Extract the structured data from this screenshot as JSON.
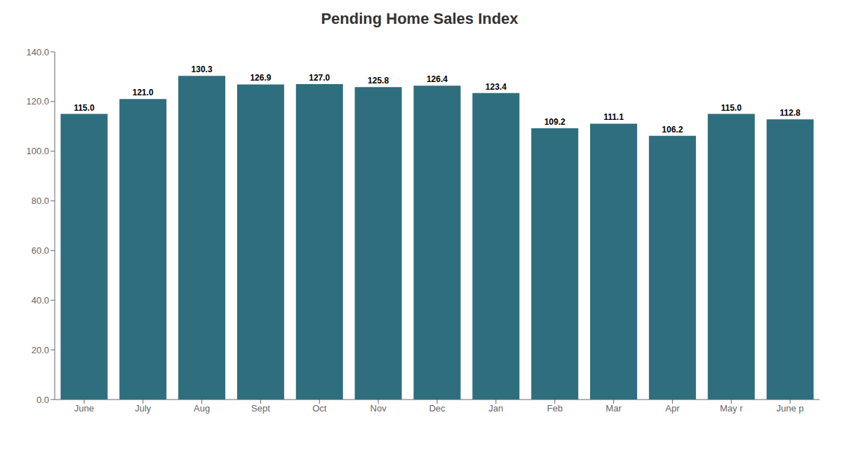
{
  "chart_data": {
    "type": "bar",
    "title": "Pending Home Sales Index",
    "categories": [
      "June",
      "July",
      "Aug",
      "Sept",
      "Oct",
      "Nov",
      "Dec",
      "Jan",
      "Feb",
      "Mar",
      "Apr",
      "May r",
      "June p"
    ],
    "values": [
      115.0,
      121.0,
      130.3,
      126.9,
      127.0,
      125.8,
      126.4,
      123.4,
      109.2,
      111.1,
      106.2,
      115.0,
      112.8
    ],
    "value_labels": [
      "115.0",
      "121.0",
      "130.3",
      "126.9",
      "127.0",
      "125.8",
      "126.4",
      "123.4",
      "109.2",
      "111.1",
      "106.2",
      "115.0",
      "112.8"
    ],
    "color": "#2e6e7e",
    "ylim": [
      0,
      140
    ],
    "yticks": [
      {
        "value": 0,
        "label": "0.0"
      },
      {
        "value": 20,
        "label": "20.0"
      },
      {
        "value": 40,
        "label": "40.0"
      },
      {
        "value": 60,
        "label": "60.0"
      },
      {
        "value": 80,
        "label": "80.0"
      },
      {
        "value": 100,
        "label": "100.0"
      },
      {
        "value": 120,
        "label": "120.0"
      },
      {
        "value": 140,
        "label": "140.0"
      }
    ],
    "grid": false,
    "data_labels": true
  }
}
